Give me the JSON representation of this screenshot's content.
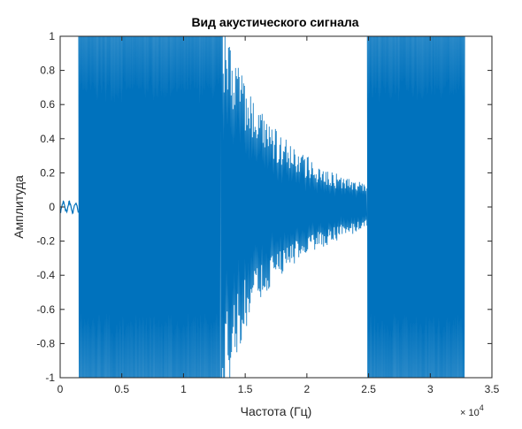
{
  "chart_data": {
    "type": "line",
    "title": "Вид акустического сигнала",
    "xlabel": "Частота (Гц)",
    "ylabel": "Амплитуда",
    "x_exponent_base": "× 10",
    "x_exponent_power": "4",
    "xlim": [
      0,
      35000
    ],
    "ylim": [
      -1,
      1
    ],
    "x_ticks": [
      0,
      5000,
      10000,
      15000,
      20000,
      25000,
      30000,
      35000
    ],
    "x_tick_labels": [
      "0",
      "0.5",
      "1",
      "1.5",
      "2",
      "2.5",
      "3",
      "3.5"
    ],
    "y_ticks": [
      -1,
      -0.8,
      -0.6,
      -0.4,
      -0.2,
      0,
      0.2,
      0.4,
      0.6,
      0.8,
      1
    ],
    "y_tick_labels": [
      "-1",
      "-0.8",
      "-0.6",
      "-0.4",
      "-0.2",
      "0",
      "0.2",
      "0.4",
      "0.6",
      "0.8",
      "1"
    ],
    "grid": false,
    "line_color": "#0072BD",
    "series": [
      {
        "segments": [
          {
            "x": [
              0,
              1500
            ],
            "envelope": [
              0.04,
              0.04
            ],
            "note": ""
          },
          {
            "x": [
              1500,
              13000
            ],
            "envelope": [
              1.0,
              1.0
            ]
          },
          {
            "x": [
              13000,
              14000,
              15000,
              16000,
              17000,
              18000,
              19000,
              20000,
              21000,
              22000,
              23000,
              24000,
              24900
            ],
            "envelope": [
              1.0,
              0.85,
              0.62,
              0.5,
              0.42,
              0.34,
              0.29,
              0.25,
              0.21,
              0.18,
              0.15,
              0.13,
              0.11
            ]
          },
          {
            "x": [
              24900,
              32800
            ],
            "envelope": [
              1.0,
              1.0
            ]
          }
        ]
      }
    ]
  }
}
